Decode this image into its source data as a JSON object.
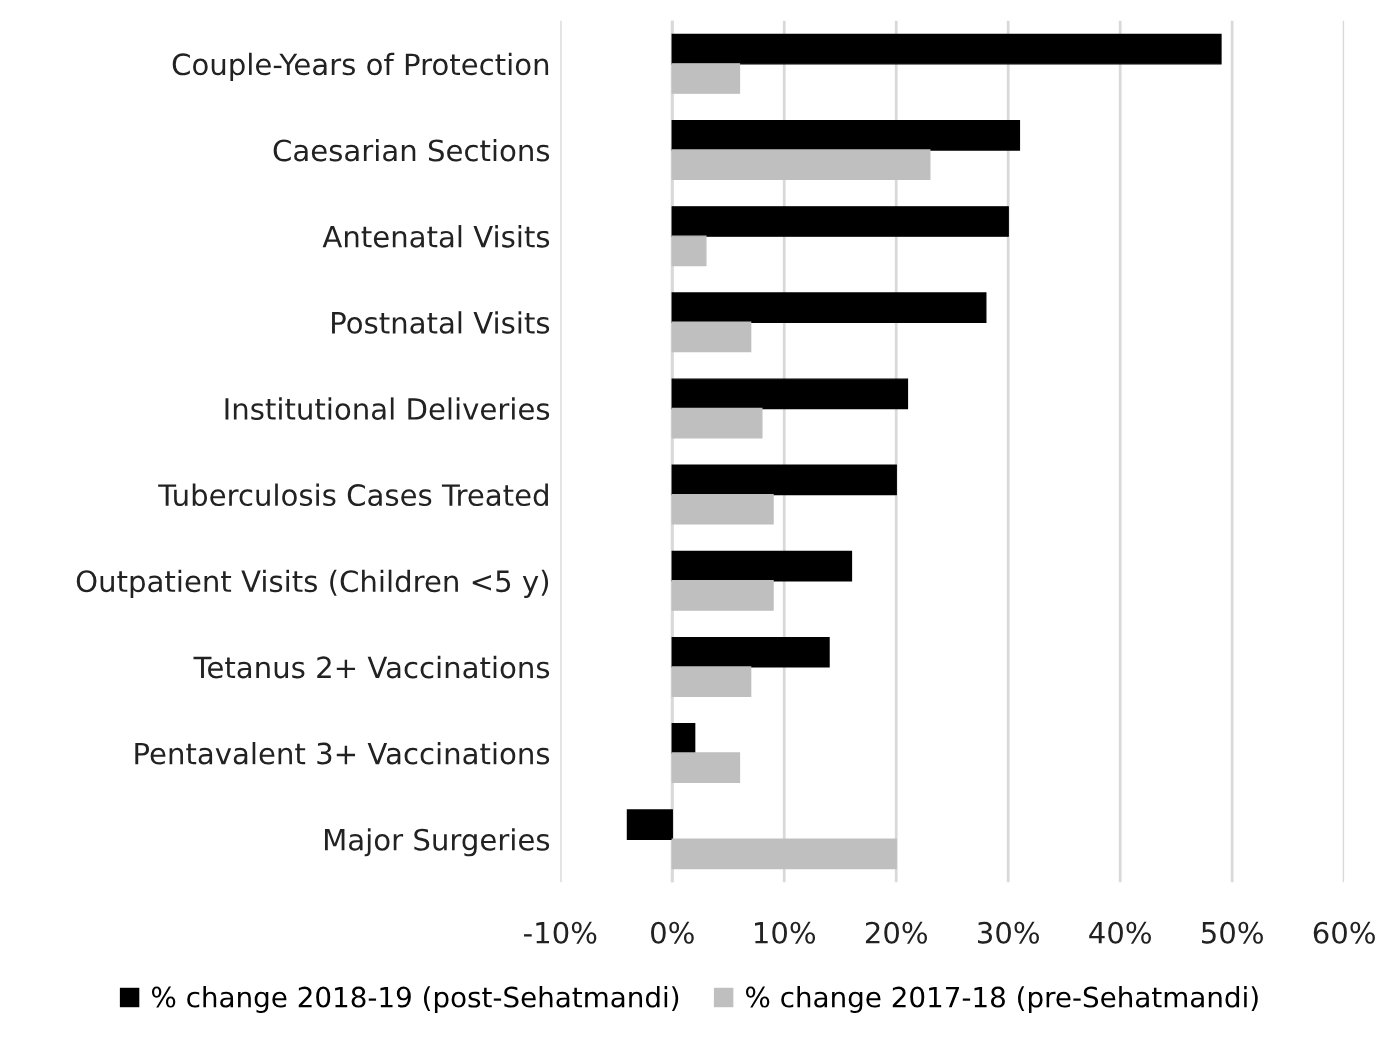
{
  "chart_data": {
    "type": "bar",
    "orientation": "horizontal",
    "categories": [
      "Couple-Years of Protection",
      "Caesarian Sections",
      "Antenatal Visits",
      "Postnatal Visits",
      "Institutional Deliveries",
      "Tuberculosis Cases Treated",
      "Outpatient Visits (Children <5 y)",
      "Tetanus 2+ Vaccinations",
      "Pentavalent 3+ Vaccinations",
      "Major Surgeries"
    ],
    "series": [
      {
        "name": "% change 2018-19 (post-Sehatmandi)",
        "color": "#000000",
        "values": [
          49,
          31,
          30,
          28,
          21,
          20,
          16,
          14,
          2,
          -4
        ]
      },
      {
        "name": "% change 2017-18 (pre-Sehatmandi)",
        "color": "#bfbfbf",
        "values": [
          6,
          23,
          3,
          7,
          8,
          9,
          9,
          7,
          6,
          20
        ]
      }
    ],
    "xlim": [
      -10,
      60
    ],
    "xticks": [
      {
        "value": -10,
        "label": "-10%"
      },
      {
        "value": 0,
        "label": "0%"
      },
      {
        "value": 10,
        "label": "10%"
      },
      {
        "value": 20,
        "label": "20%"
      },
      {
        "value": 30,
        "label": "30%"
      },
      {
        "value": 40,
        "label": "40%"
      },
      {
        "value": 50,
        "label": "50%"
      },
      {
        "value": 60,
        "label": "60%"
      }
    ],
    "grid": "x",
    "legend": "bottom"
  }
}
